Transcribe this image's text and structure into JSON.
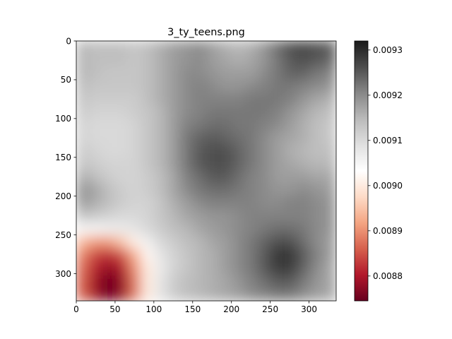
{
  "chart_data": {
    "type": "heatmap",
    "title": "3_ty_teens.png",
    "xlabel": "",
    "ylabel": "",
    "xlim": [
      0,
      335
    ],
    "ylim": [
      335,
      0
    ],
    "x_ticks": [
      0,
      50,
      100,
      150,
      200,
      250,
      300
    ],
    "y_ticks": [
      0,
      50,
      100,
      150,
      200,
      250,
      300
    ],
    "x_tick_labels": [
      "0",
      "50",
      "100",
      "150",
      "200",
      "250",
      "300"
    ],
    "y_tick_labels": [
      "0",
      "50",
      "100",
      "150",
      "200",
      "250",
      "300"
    ],
    "colormap": "RdGy",
    "colormap_stops": [
      "#67001f",
      "#b2182b",
      "#d6604d",
      "#f4a582",
      "#fddbc7",
      "#ffffff",
      "#e0e0e0",
      "#bababa",
      "#878787",
      "#4d4d4d",
      "#1a1a1a"
    ],
    "colorbar": {
      "range": [
        0.008745,
        0.00932
      ],
      "ticks": [
        0.0088,
        0.0089,
        0.009,
        0.0091,
        0.0092,
        0.0093
      ],
      "tick_labels": [
        "0.0088",
        "0.0089",
        "0.0090",
        "0.0091",
        "0.0092",
        "0.0093"
      ]
    },
    "grid_step": 16.75,
    "values": [
      [
        0.00915,
        0.00914,
        0.00914,
        0.00914,
        0.00913,
        0.00914,
        0.00916,
        0.00918,
        0.00919,
        0.0092,
        0.00918,
        0.00916,
        0.00915,
        0.00916,
        0.00919,
        0.00923,
        0.00926,
        0.00927,
        0.00926,
        0.00925
      ],
      [
        0.00915,
        0.00914,
        0.00914,
        0.00914,
        0.00913,
        0.00914,
        0.00916,
        0.00918,
        0.00919,
        0.0092,
        0.00918,
        0.00917,
        0.00916,
        0.00917,
        0.00919,
        0.00922,
        0.00925,
        0.00926,
        0.00925,
        0.00924
      ],
      [
        0.00915,
        0.00914,
        0.00913,
        0.00913,
        0.00913,
        0.00914,
        0.00916,
        0.00918,
        0.0092,
        0.0092,
        0.00919,
        0.00918,
        0.00918,
        0.00918,
        0.0092,
        0.00922,
        0.00924,
        0.00924,
        0.00922,
        0.00921
      ],
      [
        0.00914,
        0.00913,
        0.00913,
        0.00913,
        0.00913,
        0.00914,
        0.00916,
        0.00918,
        0.0092,
        0.00921,
        0.0092,
        0.00919,
        0.00919,
        0.0092,
        0.00921,
        0.00922,
        0.00922,
        0.00921,
        0.0092,
        0.00919
      ],
      [
        0.00913,
        0.00912,
        0.00912,
        0.00912,
        0.00912,
        0.00914,
        0.00916,
        0.00918,
        0.0092,
        0.00921,
        0.00921,
        0.00921,
        0.00921,
        0.00922,
        0.00922,
        0.00922,
        0.00921,
        0.00919,
        0.00917,
        0.00916
      ],
      [
        0.00912,
        0.00911,
        0.00911,
        0.00911,
        0.00912,
        0.00913,
        0.00915,
        0.00918,
        0.0092,
        0.00921,
        0.00922,
        0.00922,
        0.00922,
        0.00922,
        0.00922,
        0.00921,
        0.00919,
        0.00917,
        0.00915,
        0.00914
      ],
      [
        0.00911,
        0.0091,
        0.0091,
        0.0091,
        0.00911,
        0.00913,
        0.00915,
        0.00918,
        0.00921,
        0.00922,
        0.00923,
        0.00923,
        0.00922,
        0.00922,
        0.00921,
        0.0092,
        0.00918,
        0.00916,
        0.00914,
        0.00913
      ],
      [
        0.00911,
        0.0091,
        0.0091,
        0.0091,
        0.00911,
        0.00913,
        0.00915,
        0.00918,
        0.00922,
        0.00924,
        0.00925,
        0.00924,
        0.00923,
        0.00922,
        0.0092,
        0.00918,
        0.00917,
        0.00916,
        0.00914,
        0.00913
      ],
      [
        0.00912,
        0.00911,
        0.0091,
        0.0091,
        0.00911,
        0.00913,
        0.00915,
        0.00918,
        0.00922,
        0.00925,
        0.00926,
        0.00926,
        0.00924,
        0.00922,
        0.0092,
        0.00918,
        0.00916,
        0.00915,
        0.00914,
        0.00914
      ],
      [
        0.00913,
        0.00912,
        0.00911,
        0.00911,
        0.00911,
        0.00913,
        0.00915,
        0.00918,
        0.00922,
        0.00925,
        0.00926,
        0.00926,
        0.00924,
        0.00922,
        0.0092,
        0.00918,
        0.00917,
        0.00916,
        0.00915,
        0.00915
      ],
      [
        0.00916,
        0.00914,
        0.00912,
        0.00911,
        0.00911,
        0.00912,
        0.00914,
        0.00917,
        0.00921,
        0.00923,
        0.00925,
        0.00925,
        0.00923,
        0.00921,
        0.0092,
        0.00918,
        0.00918,
        0.00918,
        0.00917,
        0.00917
      ],
      [
        0.00919,
        0.00917,
        0.00914,
        0.00912,
        0.00911,
        0.00912,
        0.00914,
        0.00917,
        0.0092,
        0.00922,
        0.00923,
        0.00923,
        0.00922,
        0.00921,
        0.0092,
        0.00919,
        0.00919,
        0.0092,
        0.00919,
        0.00918
      ],
      [
        0.00918,
        0.00916,
        0.00914,
        0.00912,
        0.00911,
        0.00911,
        0.00913,
        0.00916,
        0.00918,
        0.0092,
        0.00921,
        0.00921,
        0.00921,
        0.00921,
        0.0092,
        0.0092,
        0.00921,
        0.00921,
        0.0092,
        0.00919
      ],
      [
        0.00913,
        0.00912,
        0.00911,
        0.0091,
        0.0091,
        0.00911,
        0.00913,
        0.00915,
        0.00917,
        0.00918,
        0.00919,
        0.00919,
        0.0092,
        0.00921,
        0.00921,
        0.00921,
        0.00921,
        0.00921,
        0.0092,
        0.00919
      ],
      [
        0.00905,
        0.00905,
        0.00906,
        0.00907,
        0.00908,
        0.0091,
        0.00912,
        0.00914,
        0.00915,
        0.00917,
        0.00918,
        0.00919,
        0.0092,
        0.00921,
        0.00922,
        0.00923,
        0.00923,
        0.00922,
        0.0092,
        0.00919
      ],
      [
        0.00894,
        0.00891,
        0.00891,
        0.00895,
        0.00901,
        0.00906,
        0.0091,
        0.00912,
        0.00914,
        0.00915,
        0.00917,
        0.00918,
        0.0092,
        0.00922,
        0.00924,
        0.00926,
        0.00926,
        0.00923,
        0.0092,
        0.00918
      ],
      [
        0.00889,
        0.00884,
        0.00882,
        0.00885,
        0.00893,
        0.00902,
        0.00908,
        0.00911,
        0.00913,
        0.00915,
        0.00916,
        0.00918,
        0.0092,
        0.00922,
        0.00925,
        0.00929,
        0.00929,
        0.00925,
        0.00921,
        0.00918
      ],
      [
        0.00887,
        0.00881,
        0.00878,
        0.0088,
        0.0089,
        0.009,
        0.00907,
        0.00911,
        0.00913,
        0.00915,
        0.00916,
        0.00918,
        0.0092,
        0.00922,
        0.00925,
        0.00928,
        0.00928,
        0.00924,
        0.0092,
        0.00917
      ],
      [
        0.00886,
        0.00879,
        0.00875,
        0.00878,
        0.00888,
        0.009,
        0.00908,
        0.00912,
        0.00914,
        0.00915,
        0.00916,
        0.00917,
        0.00919,
        0.00921,
        0.00923,
        0.00925,
        0.00925,
        0.00922,
        0.00919,
        0.00917
      ],
      [
        0.00886,
        0.00879,
        0.00875,
        0.00878,
        0.00888,
        0.009,
        0.00908,
        0.00912,
        0.00914,
        0.00915,
        0.00916,
        0.00917,
        0.00918,
        0.0092,
        0.00921,
        0.00922,
        0.00922,
        0.0092,
        0.00918,
        0.00917
      ]
    ]
  }
}
